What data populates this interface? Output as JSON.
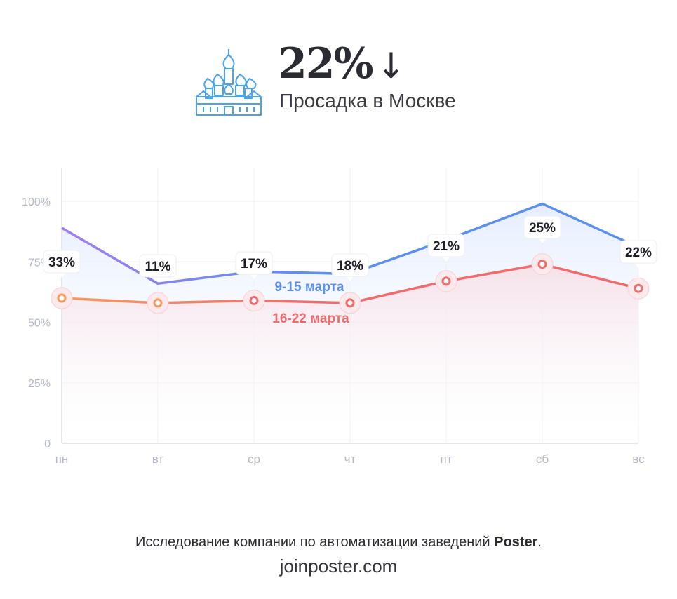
{
  "header": {
    "icon": "cathedral-icon",
    "headline_value": "22%",
    "headline_arrow": "↓",
    "subtitle": "Просадка в Москве"
  },
  "chart_data": {
    "type": "line",
    "categories": [
      "пн",
      "вт",
      "ср",
      "чт",
      "пт",
      "сб",
      "вс"
    ],
    "yticks": [
      "0",
      "25%",
      "50%",
      "75%",
      "100%"
    ],
    "ylim": [
      0,
      100
    ],
    "grid": true,
    "series": [
      {
        "name": "9-15 марта",
        "color": "#5b8ff0",
        "start_color": "#a07ef0",
        "values": [
          89,
          66,
          71,
          70,
          84,
          99,
          81
        ]
      },
      {
        "name": "16-22 марта",
        "color": "#f26a6a",
        "start_color": "#f79a5f",
        "values": [
          60,
          58,
          59,
          58,
          67,
          74,
          64
        ]
      }
    ],
    "change_labels": [
      "33%",
      "11%",
      "17%",
      "18%",
      "21%",
      "25%",
      "22%"
    ],
    "legend": "inline, center"
  },
  "footer": {
    "text_prefix": "Исследование компании по автоматизации заведений ",
    "brand": "Poster",
    "text_suffix": ".",
    "site": "joinposter.com"
  }
}
